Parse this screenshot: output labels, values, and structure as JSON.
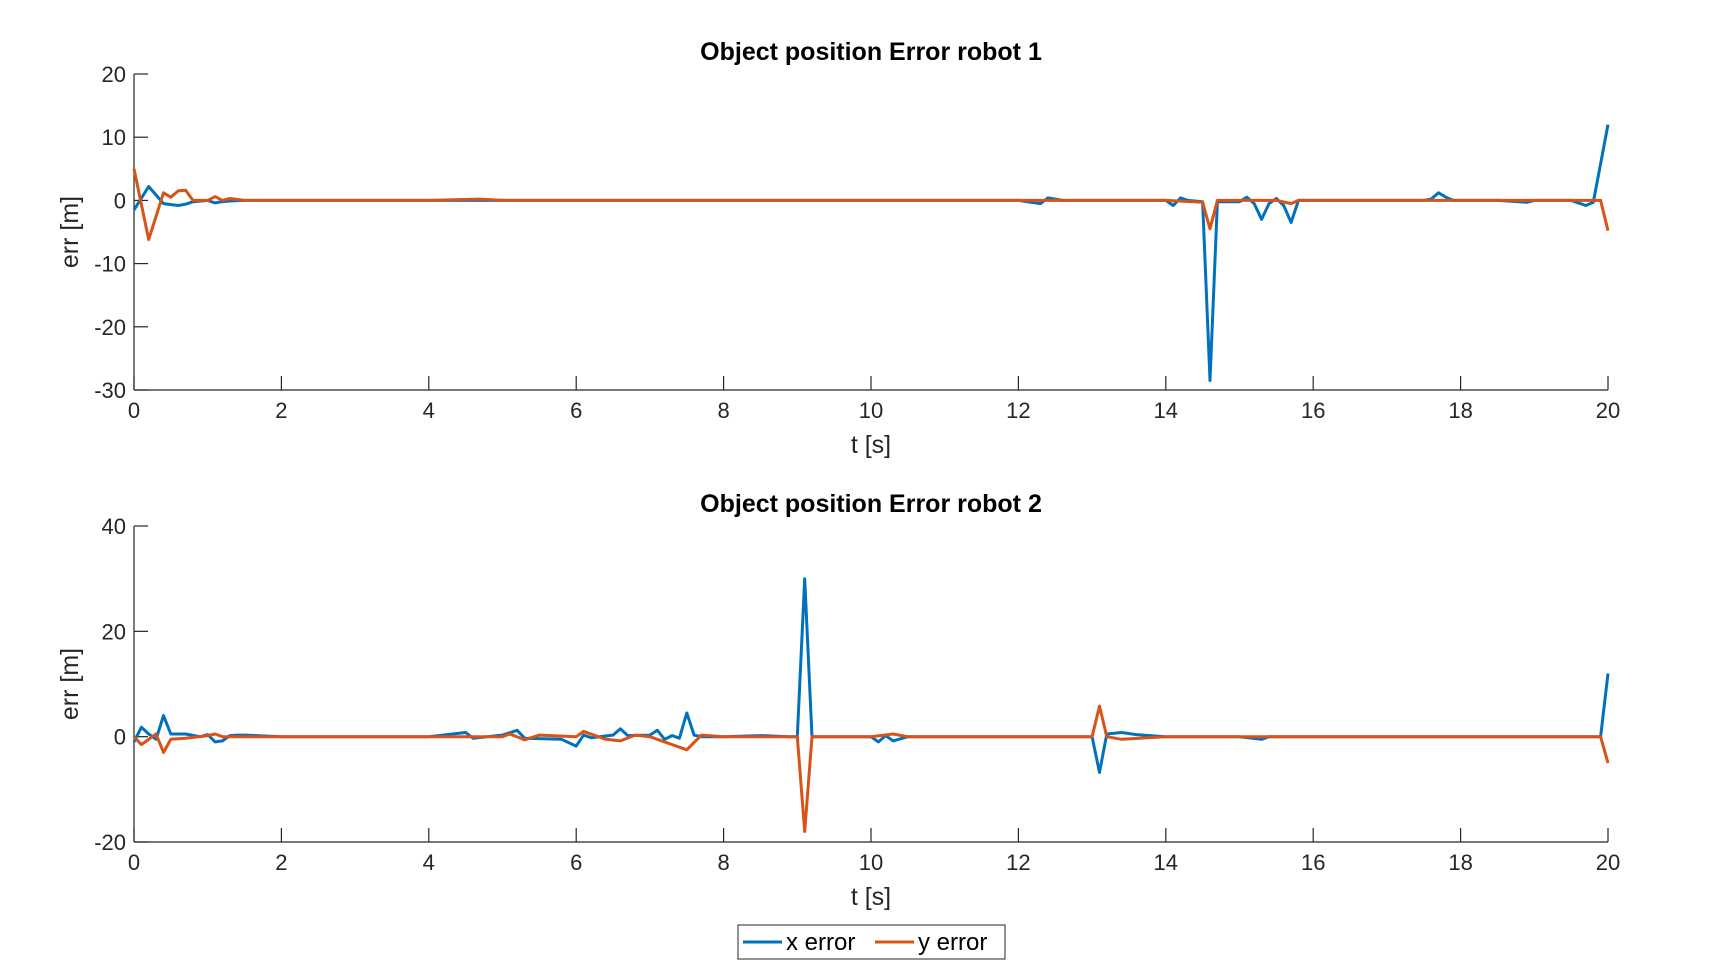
{
  "chart_data": [
    {
      "type": "line",
      "title": "Object position Error robot 1",
      "xlabel": "t [s]",
      "ylabel": "err [m]",
      "xlim": [
        0,
        20
      ],
      "ylim": [
        -30,
        20
      ],
      "xticks": [
        0,
        2,
        4,
        6,
        8,
        10,
        12,
        14,
        16,
        18,
        20
      ],
      "yticks": [
        20,
        10,
        0,
        -10,
        -20,
        -30
      ],
      "series": [
        {
          "name": "x error",
          "color": "#0072BD",
          "x": [
            0,
            0.2,
            0.4,
            0.6,
            0.7,
            0.8,
            1.0,
            1.1,
            1.2,
            1.3,
            1.5,
            2.0,
            2.5,
            3.0,
            3.5,
            4.0,
            4.5,
            5.0,
            6.0,
            7.0,
            8.0,
            9.0,
            10.0,
            11.0,
            12.0,
            12.3,
            12.4,
            12.6,
            13.0,
            13.5,
            14.0,
            14.1,
            14.2,
            14.3,
            14.5,
            14.6,
            14.7,
            15.0,
            15.1,
            15.2,
            15.3,
            15.4,
            15.5,
            15.6,
            15.7,
            15.8,
            16.0,
            16.5,
            17.0,
            17.5,
            17.6,
            17.7,
            17.8,
            17.9,
            18.0,
            18.5,
            18.9,
            19.0,
            19.5,
            19.7,
            19.8,
            20.0
          ],
          "values": [
            -1.5,
            2.2,
            -0.5,
            -0.8,
            -0.6,
            -0.2,
            0,
            -0.4,
            -0.2,
            -0.1,
            0,
            0,
            0,
            0,
            0,
            0,
            0,
            0,
            0,
            0,
            0,
            0,
            0,
            0,
            0,
            -0.5,
            0.4,
            0,
            0,
            0,
            0,
            -0.8,
            0.4,
            0,
            -0.2,
            -28.5,
            -0.2,
            -0.2,
            0.5,
            -0.5,
            -3,
            -0.5,
            0.3,
            -0.8,
            -3.5,
            0,
            0,
            0,
            0,
            0,
            0.2,
            1.2,
            0.5,
            0,
            0,
            0,
            -0.3,
            0,
            0,
            -0.8,
            -0.3,
            12
          ]
        },
        {
          "name": "y error",
          "color": "#D95319",
          "x": [
            0,
            0.2,
            0.4,
            0.5,
            0.6,
            0.7,
            0.8,
            1.0,
            1.1,
            1.2,
            1.3,
            1.5,
            2.0,
            3.0,
            4.0,
            4.7,
            5.0,
            6.0,
            8.0,
            10.0,
            12.0,
            14.0,
            14.5,
            14.6,
            14.7,
            15.0,
            15.5,
            15.7,
            15.8,
            16.0,
            17.0,
            18.0,
            19.0,
            19.9,
            20.0
          ],
          "values": [
            5,
            -6.2,
            1.2,
            0.5,
            1.5,
            1.6,
            0,
            0,
            0.6,
            0,
            0.3,
            0,
            0,
            0,
            0,
            0.2,
            0,
            0,
            0,
            0,
            0,
            0,
            -0.3,
            -4.5,
            0,
            0,
            0,
            -0.5,
            0,
            0,
            0,
            0,
            0,
            0,
            -4.8
          ]
        }
      ]
    },
    {
      "type": "line",
      "title": "Object position Error robot 2",
      "xlabel": "t [s]",
      "ylabel": "err [m]",
      "xlim": [
        0,
        20
      ],
      "ylim": [
        -20,
        40
      ],
      "xticks": [
        0,
        2,
        4,
        6,
        8,
        10,
        12,
        14,
        16,
        18,
        20
      ],
      "yticks": [
        40,
        20,
        0,
        -20
      ],
      "series": [
        {
          "name": "x error",
          "color": "#0072BD",
          "x": [
            0,
            0.1,
            0.2,
            0.3,
            0.4,
            0.5,
            0.7,
            0.9,
            1.0,
            1.1,
            1.2,
            1.3,
            1.4,
            1.5,
            2.0,
            3.0,
            4.0,
            4.5,
            4.6,
            5.0,
            5.2,
            5.3,
            5.8,
            6.0,
            6.1,
            6.2,
            6.5,
            6.6,
            6.7,
            7.0,
            7.1,
            7.2,
            7.3,
            7.4,
            7.5,
            7.6,
            7.7,
            8.0,
            8.5,
            8.9,
            9.0,
            9.1,
            9.2,
            9.5,
            10.0,
            10.1,
            10.2,
            10.3,
            10.5,
            11.0,
            12.0,
            13.0,
            13.1,
            13.2,
            13.4,
            13.6,
            14.0,
            15.0,
            15.3,
            15.4,
            15.5,
            16.0,
            17.0,
            18.0,
            18.9,
            19.0,
            19.9,
            20.0
          ],
          "values": [
            -1,
            1.8,
            0.5,
            -0.5,
            4,
            0.5,
            0.5,
            0,
            0.4,
            -1,
            -0.8,
            0.2,
            0.3,
            0.3,
            0,
            0,
            0,
            0.8,
            -0.3,
            0.3,
            1.2,
            -0.3,
            -0.5,
            -1.8,
            0.3,
            -0.2,
            0.3,
            1.5,
            0.2,
            0.3,
            1.2,
            -0.5,
            0.2,
            -0.3,
            4.5,
            0.3,
            0,
            0,
            0.2,
            0,
            0,
            30,
            0,
            0,
            0,
            -1,
            0.2,
            -0.8,
            0,
            0,
            0,
            0,
            -6.8,
            0.5,
            0.8,
            0.4,
            0,
            0,
            -0.5,
            0,
            0,
            0,
            0,
            0,
            0,
            0,
            0,
            12
          ]
        },
        {
          "name": "y error",
          "color": "#D95319",
          "x": [
            0,
            0.1,
            0.2,
            0.3,
            0.4,
            0.5,
            0.7,
            1.0,
            1.1,
            1.2,
            1.5,
            2.0,
            3.0,
            4.0,
            5.0,
            5.1,
            5.3,
            5.5,
            6.0,
            6.1,
            6.4,
            6.6,
            6.8,
            7.0,
            7.5,
            7.7,
            8.0,
            9.0,
            9.1,
            9.2,
            9.5,
            10.0,
            10.3,
            10.5,
            11.0,
            12.0,
            13.0,
            13.1,
            13.2,
            13.4,
            14.0,
            15.0,
            16.0,
            17.0,
            18.0,
            19.0,
            19.9,
            20.0
          ],
          "values": [
            0,
            -1.5,
            -0.5,
            0.5,
            -3,
            -0.5,
            -0.3,
            0.2,
            0.5,
            0,
            0,
            0,
            0,
            0,
            0,
            0.5,
            -0.6,
            0.3,
            0,
            1,
            -0.5,
            -0.8,
            0.3,
            0,
            -2.5,
            0.3,
            0,
            0,
            -18,
            0,
            0,
            0,
            0.5,
            0,
            0,
            0,
            0,
            5.8,
            0,
            -0.5,
            0,
            0,
            0,
            0,
            0,
            0,
            0,
            -5
          ]
        }
      ]
    }
  ],
  "legend": {
    "placement": "bottom-center",
    "items": [
      {
        "label": "x error",
        "color": "#0072BD"
      },
      {
        "label": "y error",
        "color": "#D95319"
      }
    ]
  }
}
